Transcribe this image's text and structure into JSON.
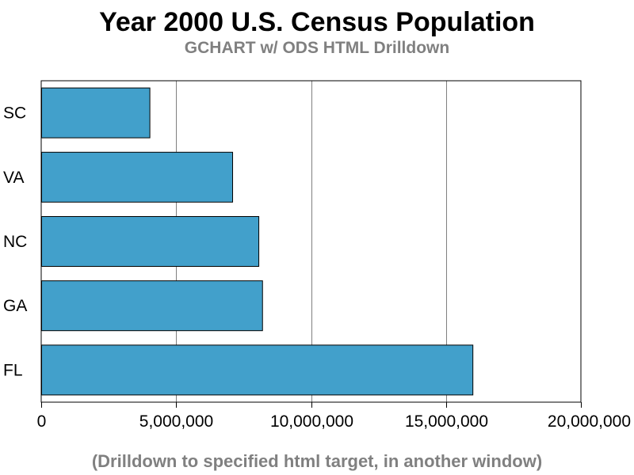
{
  "chart_data": {
    "type": "bar",
    "orientation": "horizontal",
    "title": "Year 2000 U.S. Census Population",
    "subtitle": "GCHART w/ ODS HTML Drilldown",
    "footnote": "(Drilldown to specified html target, in another window)",
    "categories": [
      "SC",
      "VA",
      "NC",
      "GA",
      "FL"
    ],
    "values": [
      4012012,
      7078515,
      8049313,
      8186453,
      15982378
    ],
    "xlim": [
      0,
      20000000
    ],
    "x_ticks": [
      0,
      5000000,
      10000000,
      15000000,
      20000000
    ],
    "x_tick_labels": [
      "0",
      "5,000,000",
      "10,000,000",
      "15,000,000",
      "20,000,000"
    ],
    "grid": true,
    "bar_color": "#42A0CB",
    "bar_outline_color": "#000000",
    "grid_color": "#808080"
  }
}
